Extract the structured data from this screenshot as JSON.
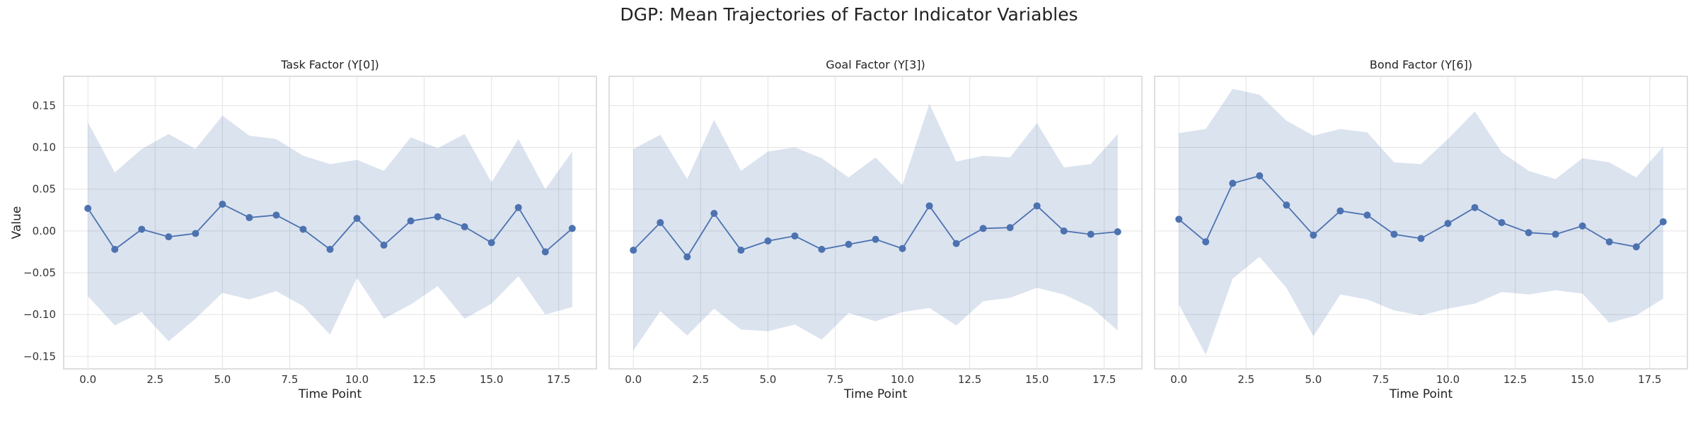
{
  "figure": {
    "suptitle": "DGP: Mean Trajectories of Factor Indicator Variables"
  },
  "chart_data": [
    {
      "type": "line",
      "title": "Task Factor (Y[0])",
      "xlabel": "Time Point",
      "ylabel": "Value",
      "xlim": [
        -0.9,
        18.9
      ],
      "ylim": [
        -0.165,
        0.185
      ],
      "xticks": [
        "0.0",
        "2.5",
        "5.0",
        "7.5",
        "10.0",
        "12.5",
        "15.0",
        "17.5"
      ],
      "yticks": [
        "−0.15",
        "−0.10",
        "−0.05",
        "0.00",
        "0.05",
        "0.10",
        "0.15"
      ],
      "grid": true,
      "x": [
        0,
        1,
        2,
        3,
        4,
        5,
        6,
        7,
        8,
        9,
        10,
        11,
        12,
        13,
        14,
        15,
        16,
        17,
        18
      ],
      "mean": [
        0.027,
        -0.022,
        0.002,
        -0.007,
        -0.003,
        0.032,
        0.016,
        0.019,
        0.002,
        -0.022,
        0.015,
        -0.017,
        0.012,
        0.017,
        0.005,
        -0.014,
        0.028,
        -0.025,
        0.003
      ],
      "upper": [
        0.13,
        0.07,
        0.098,
        0.116,
        0.098,
        0.138,
        0.114,
        0.11,
        0.09,
        0.08,
        0.085,
        0.072,
        0.112,
        0.099,
        0.116,
        0.058,
        0.11,
        0.05,
        0.095
      ],
      "lower": [
        -0.078,
        -0.113,
        -0.097,
        -0.132,
        -0.105,
        -0.074,
        -0.082,
        -0.072,
        -0.09,
        -0.124,
        -0.056,
        -0.105,
        -0.088,
        -0.066,
        -0.105,
        -0.087,
        -0.054,
        -0.1,
        -0.091
      ]
    },
    {
      "type": "line",
      "title": "Goal Factor (Y[3])",
      "xlabel": "Time Point",
      "ylabel": "",
      "xlim": [
        -0.9,
        18.9
      ],
      "ylim": [
        -0.165,
        0.185
      ],
      "xticks": [
        "0.0",
        "2.5",
        "5.0",
        "7.5",
        "10.0",
        "12.5",
        "15.0",
        "17.5"
      ],
      "grid": true,
      "x": [
        0,
        1,
        2,
        3,
        4,
        5,
        6,
        7,
        8,
        9,
        10,
        11,
        12,
        13,
        14,
        15,
        16,
        17,
        18
      ],
      "mean": [
        -0.023,
        0.01,
        -0.031,
        0.021,
        -0.023,
        -0.012,
        -0.006,
        -0.022,
        -0.016,
        -0.01,
        -0.021,
        0.03,
        -0.015,
        0.003,
        0.004,
        0.03,
        0.0,
        -0.004,
        -0.001
      ],
      "upper": [
        0.098,
        0.115,
        0.062,
        0.133,
        0.072,
        0.095,
        0.1,
        0.087,
        0.064,
        0.088,
        0.055,
        0.152,
        0.083,
        0.09,
        0.088,
        0.129,
        0.076,
        0.08,
        0.116
      ],
      "lower": [
        -0.143,
        -0.096,
        -0.125,
        -0.093,
        -0.118,
        -0.12,
        -0.112,
        -0.13,
        -0.098,
        -0.108,
        -0.097,
        -0.092,
        -0.113,
        -0.084,
        -0.08,
        -0.068,
        -0.076,
        -0.091,
        -0.119
      ]
    },
    {
      "type": "line",
      "title": "Bond Factor (Y[6])",
      "xlabel": "Time Point",
      "ylabel": "",
      "xlim": [
        -0.9,
        18.9
      ],
      "ylim": [
        -0.165,
        0.185
      ],
      "xticks": [
        "0.0",
        "2.5",
        "5.0",
        "7.5",
        "10.0",
        "12.5",
        "15.0",
        "17.5"
      ],
      "grid": true,
      "x": [
        0,
        1,
        2,
        3,
        4,
        5,
        6,
        7,
        8,
        9,
        10,
        11,
        12,
        13,
        14,
        15,
        16,
        17,
        18
      ],
      "mean": [
        0.014,
        -0.013,
        0.057,
        0.066,
        0.031,
        -0.005,
        0.024,
        0.019,
        -0.004,
        -0.009,
        0.009,
        0.028,
        0.01,
        -0.002,
        -0.004,
        0.006,
        -0.013,
        -0.019,
        0.011
      ],
      "upper": [
        0.117,
        0.122,
        0.17,
        0.163,
        0.132,
        0.114,
        0.122,
        0.118,
        0.082,
        0.08,
        0.11,
        0.143,
        0.094,
        0.072,
        0.062,
        0.087,
        0.082,
        0.064,
        0.101
      ],
      "lower": [
        -0.088,
        -0.148,
        -0.057,
        -0.031,
        -0.068,
        -0.126,
        -0.076,
        -0.082,
        -0.095,
        -0.101,
        -0.093,
        -0.087,
        -0.073,
        -0.076,
        -0.071,
        -0.075,
        -0.11,
        -0.101,
        -0.081
      ]
    }
  ]
}
